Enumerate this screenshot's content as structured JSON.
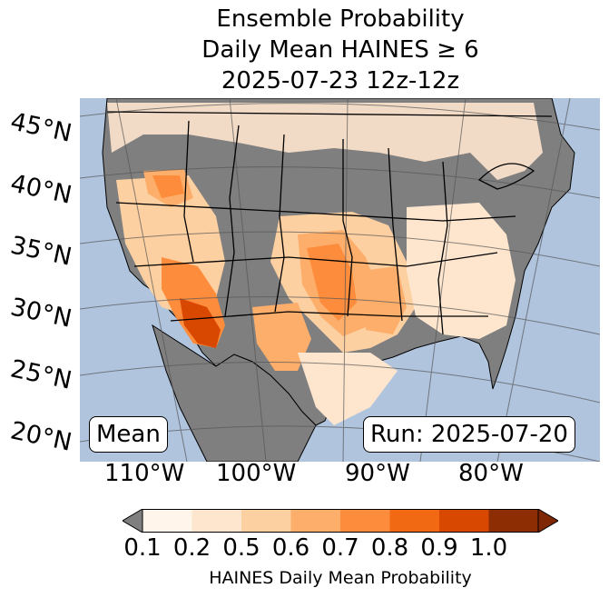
{
  "title": {
    "line1": "Ensemble Probability",
    "line2": "Daily Mean HAINES ≥ 6",
    "line3": "2025-07-23 12z-12z"
  },
  "lat_labels": [
    "45°N",
    "40°N",
    "35°N",
    "30°N",
    "25°N",
    "20°N"
  ],
  "lon_labels": [
    "110°W",
    "100°W",
    "90°W",
    "80°W"
  ],
  "stat_label": "Mean",
  "run_label": "Run: 2025-07-20",
  "colorbar": {
    "ticks": [
      "0.1",
      "0.2",
      "0.5",
      "0.6",
      "0.7",
      "0.8",
      "0.9",
      "1.0"
    ],
    "label": "HAINES Daily Mean Probability",
    "colors": [
      "#fff5eb",
      "#fee6ce",
      "#fdd0a2",
      "#fdae6b",
      "#fd8d3c",
      "#f16913",
      "#d94801",
      "#8c2d04"
    ],
    "under_color": "#7f7f7f",
    "over_color": "#7f2704"
  },
  "map_colors": {
    "ocean": "#b0c4de",
    "land_low": "#7f7f7f",
    "border": "#000000"
  }
}
